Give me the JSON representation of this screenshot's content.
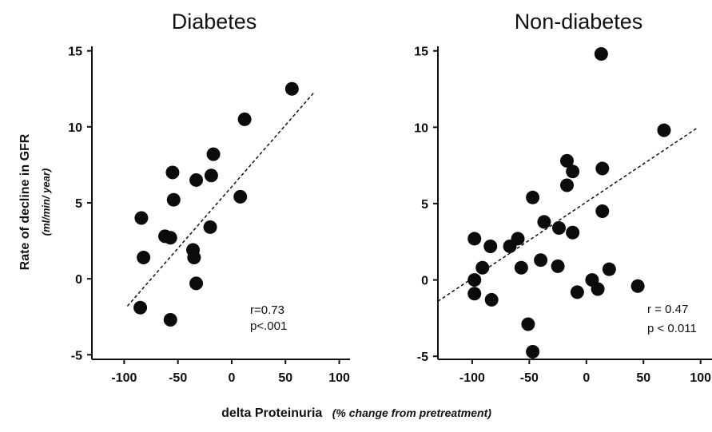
{
  "figure": {
    "ylabel": "Rate of decline in GFR",
    "ylabel_unit": "(ml/min/ year)",
    "xlabel": "delta Proteinuria",
    "xlabel_unit": "(% change from pretreatment)"
  },
  "chart_data": [
    {
      "type": "scatter",
      "title": "Diabetes",
      "xlabel": "delta Proteinuria (% change from pretreatment)",
      "ylabel": "Rate of decline in GFR (ml/min/ year)",
      "xlim": [
        -130,
        110
      ],
      "ylim": [
        -5.3,
        15.3
      ],
      "xticks": [
        -100,
        -50,
        0,
        50,
        100
      ],
      "yticks": [
        -5,
        0,
        5,
        10,
        15
      ],
      "grid": false,
      "points": [
        {
          "x": 56,
          "y": 12.5
        },
        {
          "x": 12,
          "y": 10.5
        },
        {
          "x": -17,
          "y": 8.2
        },
        {
          "x": -55,
          "y": 7.0
        },
        {
          "x": -19,
          "y": 6.8
        },
        {
          "x": -33,
          "y": 6.5
        },
        {
          "x": 8,
          "y": 5.4
        },
        {
          "x": -54,
          "y": 5.2
        },
        {
          "x": -84,
          "y": 4.0
        },
        {
          "x": -20,
          "y": 3.4
        },
        {
          "x": -62,
          "y": 2.8
        },
        {
          "x": -57,
          "y": 2.7
        },
        {
          "x": -36,
          "y": 1.9
        },
        {
          "x": -82,
          "y": 1.4
        },
        {
          "x": -35,
          "y": 1.4
        },
        {
          "x": -33,
          "y": -0.3
        },
        {
          "x": -85,
          "y": -1.9
        },
        {
          "x": -57,
          "y": -2.7
        }
      ],
      "trendline": {
        "x": [
          -97,
          77
        ],
        "y": [
          -1.8,
          12.3
        ]
      },
      "annotations": [
        "r=0.73",
        "p<.001"
      ]
    },
    {
      "type": "scatter",
      "title": "Non-diabetes",
      "xlabel": "delta Proteinuria (% change from pretreatment)",
      "ylabel": "Rate of decline in GFR (ml/min/ year)",
      "xlim": [
        -130,
        110
      ],
      "ylim": [
        -5.2,
        15.3
      ],
      "xticks": [
        -100,
        -50,
        0,
        50,
        100
      ],
      "yticks": [
        -5,
        0,
        5,
        10,
        15
      ],
      "grid": false,
      "points": [
        {
          "x": 13,
          "y": 14.8
        },
        {
          "x": 68,
          "y": 9.8
        },
        {
          "x": -17,
          "y": 7.8
        },
        {
          "x": 14,
          "y": 7.3
        },
        {
          "x": -12,
          "y": 7.1
        },
        {
          "x": -17,
          "y": 6.2
        },
        {
          "x": -47,
          "y": 5.4
        },
        {
          "x": 14,
          "y": 4.5
        },
        {
          "x": -37,
          "y": 3.8
        },
        {
          "x": -24,
          "y": 3.4
        },
        {
          "x": -12,
          "y": 3.1
        },
        {
          "x": -98,
          "y": 2.7
        },
        {
          "x": -60,
          "y": 2.7
        },
        {
          "x": -84,
          "y": 2.2
        },
        {
          "x": -67,
          "y": 2.2
        },
        {
          "x": -40,
          "y": 1.3
        },
        {
          "x": -91,
          "y": 0.8
        },
        {
          "x": -57,
          "y": 0.8
        },
        {
          "x": -25,
          "y": 0.9
        },
        {
          "x": 20,
          "y": 0.7
        },
        {
          "x": -98,
          "y": 0.0
        },
        {
          "x": 5,
          "y": 0.0
        },
        {
          "x": 45,
          "y": -0.4
        },
        {
          "x": -98,
          "y": -0.9
        },
        {
          "x": -8,
          "y": -0.8
        },
        {
          "x": 10,
          "y": -0.6
        },
        {
          "x": -83,
          "y": -1.3
        },
        {
          "x": -51,
          "y": -2.9
        },
        {
          "x": -47,
          "y": -4.7
        }
      ],
      "trendline": {
        "x": [
          -130,
          98
        ],
        "y": [
          -1.4,
          10.0
        ]
      },
      "annotations": [
        "r = 0.47",
        "p < 0.011"
      ]
    }
  ]
}
